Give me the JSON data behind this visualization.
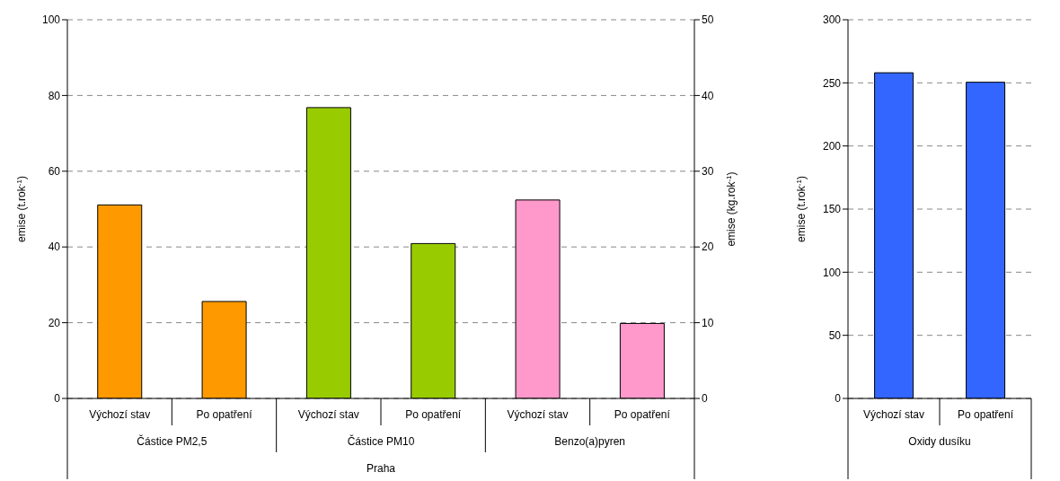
{
  "chart_data": [
    {
      "type": "bar",
      "categories": [
        "Výchozí stav",
        "Po opatření",
        "Výchozí stav",
        "Po opatření",
        "Výchozí stav",
        "Po opatření"
      ],
      "series": [
        {
          "color": "#ff9900",
          "values": [
            51.1,
            25.6,
            null,
            null,
            null,
            null
          ]
        },
        {
          "color": "#99cc00",
          "values": [
            null,
            null,
            76.8,
            40.9,
            null,
            null
          ]
        },
        {
          "color": "#ff99cc",
          "axis": "y2",
          "values": [
            null,
            null,
            null,
            null,
            26.2,
            9.9
          ]
        }
      ],
      "ylabel": "emise (t.rok$^{-1}$)",
      "y2label": "emise (kg.rok$^{-1}$)",
      "ylim": [
        0,
        100
      ],
      "yticks": [
        0,
        20,
        40,
        60,
        80,
        100
      ],
      "y2lim": [
        0,
        50
      ],
      "y2ticks": [
        0,
        10,
        20,
        30,
        40,
        50
      ],
      "grid": "y",
      "legend": false,
      "annotations": [
        "Částice PM2,5",
        "Částice PM10",
        "Benzo(a)pyren",
        "Praha"
      ]
    },
    {
      "type": "bar",
      "categories": [
        "Výchozí stav",
        "Po opatření"
      ],
      "series": [
        {
          "color": "#3366ff",
          "values": [
            258,
            250.5
          ]
        }
      ],
      "ylabel": "emise (t.rok$^{-1}$)",
      "ylim": [
        0,
        300
      ],
      "yticks": [
        0,
        50,
        100,
        150,
        200,
        250,
        300
      ],
      "grid": "y",
      "legend": false,
      "annotations": [
        "Oxidy dusíku"
      ]
    }
  ]
}
